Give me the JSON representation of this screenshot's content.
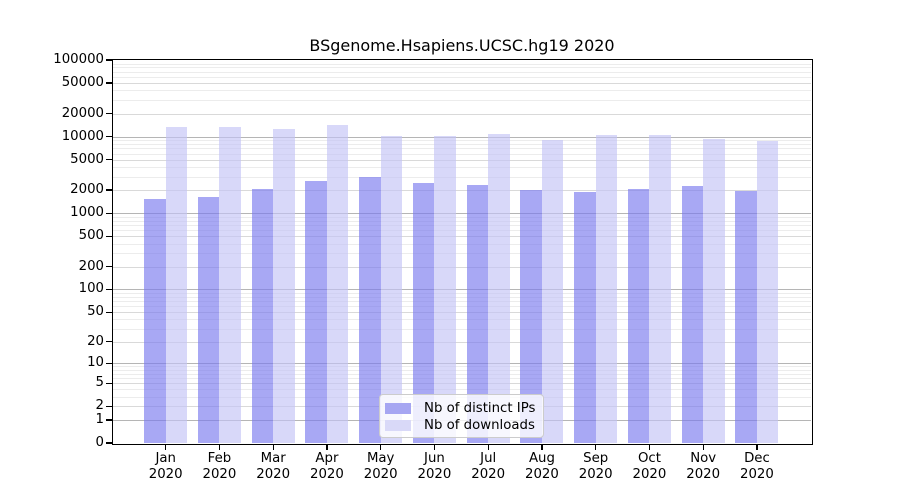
{
  "chart_data": {
    "type": "bar",
    "title": "BSgenome.Hsapiens.UCSC.hg19 2020",
    "categories": [
      "Jan",
      "Feb",
      "Mar",
      "Apr",
      "May",
      "Jun",
      "Jul",
      "Aug",
      "Sep",
      "Oct",
      "Nov",
      "Dec"
    ],
    "year": "2020",
    "series": [
      {
        "key": "distinct-ips",
        "name": "Nb of distinct IPs",
        "legend_color": "#a6a6f2",
        "fill": "rgba(121,121,238,0.65)",
        "values": [
          1510,
          1620,
          2040,
          2600,
          2950,
          2500,
          2330,
          1980,
          1900,
          2100,
          2250,
          1930
        ]
      },
      {
        "key": "downloads",
        "name": "Nb of downloads",
        "legend_color": "#d9d9f8",
        "fill": "rgba(195,195,246,0.65)",
        "values": [
          13200,
          13300,
          12400,
          14000,
          10100,
          10300,
          10800,
          8900,
          10400,
          10500,
          9400,
          8800
        ]
      }
    ],
    "yscale": "log10(1+x)",
    "ylim": [
      0,
      100000
    ],
    "yticks": [
      100000,
      50000,
      20000,
      10000,
      5000,
      2000,
      1000,
      500,
      200,
      100,
      50,
      20,
      10,
      5,
      2,
      1,
      0
    ],
    "grid": true,
    "legend_position": "lower center",
    "axis_color": "#000000",
    "gridline_major_color": "#b5b5b5",
    "gridline_minor_color": "#ececec"
  }
}
